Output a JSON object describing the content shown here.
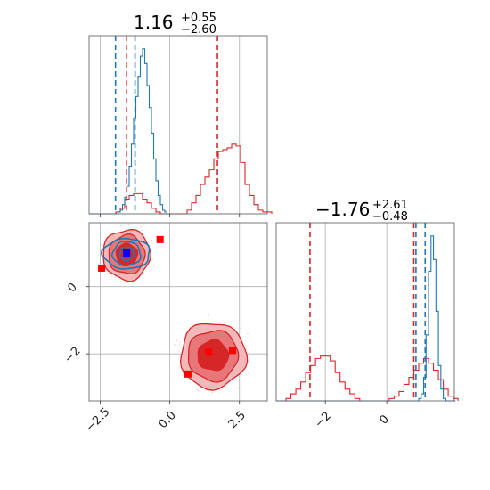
{
  "colors": {
    "red": "#d62728",
    "blue": "#1f77b4",
    "red_fill_dark": "#d62728",
    "red_fill_mid": "#e8777a",
    "red_fill_light": "#f3b9ba",
    "marker_red": "#ff0000",
    "marker_blue": "#0000ff"
  },
  "titles": {
    "p1": {
      "value": "1.16",
      "plus": "+0.55",
      "minus": "−2.60"
    },
    "p2": {
      "value": "−1.76",
      "plus": "+2.61",
      "minus": "−0.48"
    }
  },
  "chart_data": [
    {
      "type": "histogram",
      "panel": "top-left",
      "xlim": [
        -2.9,
        3.5
      ],
      "grid": true,
      "series": [
        {
          "color": "#d62728",
          "bin_start": -2.9,
          "bin_width": 0.16,
          "counts": [
            0,
            0,
            0,
            0,
            0,
            0,
            1,
            3,
            8,
            10,
            11,
            11,
            8,
            6,
            3,
            1,
            0,
            0,
            0,
            0,
            0,
            0,
            2,
            6,
            10,
            16,
            20,
            24,
            30,
            34,
            35,
            36,
            38,
            37,
            28,
            16,
            10,
            5,
            2,
            1,
            1
          ]
        },
        {
          "color": "#1f77b4",
          "bin_start": -2.9,
          "bin_width": 0.08,
          "counts": [
            0,
            0,
            0,
            0,
            0,
            0,
            0,
            0,
            0,
            0,
            0,
            0,
            0,
            1,
            2,
            5,
            9,
            15,
            26,
            38,
            52,
            64,
            75,
            86,
            90,
            82,
            70,
            58,
            44,
            30,
            18,
            10,
            5,
            2,
            1,
            0
          ]
        }
      ],
      "dashed_lines": [
        {
          "color": "#1f77b4",
          "x": -1.95
        },
        {
          "color": "#1f77b4",
          "x": -1.25
        },
        {
          "color": "#d62728",
          "x": -1.55
        },
        {
          "color": "#d62728",
          "x": 1.71
        }
      ]
    },
    {
      "type": "histogram",
      "panel": "bottom-right",
      "xlim": [
        -3.6,
        2.2
      ],
      "xticks": [
        -2,
        0
      ],
      "xticklabels": [
        "−2",
        "0"
      ],
      "grid": true,
      "series": [
        {
          "color": "#d62728",
          "bin_start": -3.6,
          "bin_width": 0.16,
          "counts": [
            0,
            0,
            1,
            3,
            5,
            8,
            12,
            15,
            18,
            19,
            19,
            17,
            12,
            8,
            5,
            3,
            1,
            0,
            0,
            0,
            0,
            0,
            0,
            1,
            2,
            4,
            7,
            10,
            13,
            16,
            18,
            16,
            13,
            9,
            5,
            2,
            1
          ]
        },
        {
          "color": "#1f77b4",
          "bin_start": -3.6,
          "bin_width": 0.08,
          "counts": [
            0,
            0,
            0,
            0,
            0,
            0,
            0,
            0,
            0,
            0,
            0,
            0,
            0,
            0,
            0,
            0,
            0,
            0,
            0,
            0,
            0,
            0,
            0,
            0,
            0,
            0,
            0,
            0,
            0,
            0,
            0,
            0,
            0,
            0,
            0,
            0,
            0,
            0,
            0,
            0,
            0,
            0,
            0,
            0,
            0,
            0,
            0,
            0,
            0,
            0,
            0,
            0,
            0,
            0,
            0,
            0,
            0,
            0,
            1,
            3,
            10,
            28,
            55,
            70,
            60,
            38,
            15,
            5,
            1,
            0,
            0,
            0,
            0
          ]
        }
      ],
      "dashed_lines": [
        {
          "color": "#d62728",
          "x": -2.5
        },
        {
          "color": "#1f77b4",
          "x": 0.95
        },
        {
          "color": "#d62728",
          "x": 0.88
        },
        {
          "color": "#1f77b4",
          "x": 1.25
        }
      ]
    },
    {
      "type": "contour",
      "panel": "bottom-left",
      "xlim": [
        -2.9,
        3.5
      ],
      "ylim": [
        -3.4,
        1.9
      ],
      "xticks": [
        -2.5,
        0.0,
        2.5
      ],
      "xticklabels": [
        "−2.5",
        "0.0",
        "2.5"
      ],
      "yticks": [
        -2,
        0
      ],
      "yticklabels": [
        "−2",
        "0"
      ],
      "grid": true,
      "red_modes": [
        {
          "cx": -1.55,
          "cy": 0.95,
          "radii": [
            [
              0.38,
              0.33
            ],
            [
              0.65,
              0.58
            ],
            [
              0.85,
              0.75
            ]
          ]
        },
        {
          "cx": 1.55,
          "cy": -2.05,
          "radii": [
            [
              0.55,
              0.45
            ],
            [
              0.9,
              0.75
            ],
            [
              1.18,
              0.98
            ]
          ]
        }
      ],
      "blue_modes": [
        {
          "cx": -1.55,
          "cy": 0.98,
          "radii": [
            [
              0.25,
              0.2
            ],
            [
              0.5,
              0.36
            ],
            [
              0.85,
              0.45
            ]
          ]
        }
      ],
      "red_points": [
        {
          "x": -2.45,
          "y": 0.55
        },
        {
          "x": -0.35,
          "y": 1.4
        },
        {
          "x": 0.65,
          "y": -2.6
        },
        {
          "x": 1.4,
          "y": -1.95
        },
        {
          "x": 2.25,
          "y": -1.9
        }
      ],
      "blue_points": [
        {
          "x": -1.55,
          "y": 1.0
        }
      ]
    }
  ]
}
